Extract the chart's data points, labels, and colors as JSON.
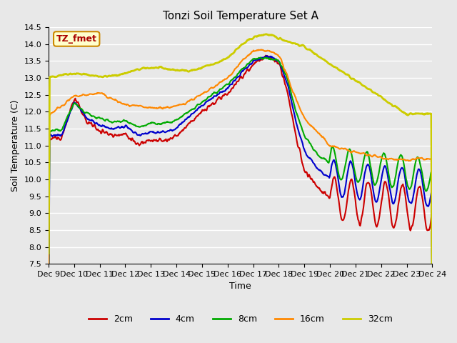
{
  "title": "Tonzi Soil Temperature Set A",
  "xlabel": "Time",
  "ylabel": "Soil Temperature (C)",
  "ylim": [
    7.5,
    14.5
  ],
  "annotation_text": "TZ_fmet",
  "annotation_bg": "#ffffcc",
  "annotation_border": "#cc8800",
  "annotation_text_color": "#aa0000",
  "background_color": "#e8e8e8",
  "plot_bg": "#e8e8e8",
  "grid_color": "#ffffff",
  "series": {
    "2cm": {
      "color": "#cc0000",
      "lw": 1.5
    },
    "4cm": {
      "color": "#0000cc",
      "lw": 1.5
    },
    "8cm": {
      "color": "#00aa00",
      "lw": 1.5
    },
    "16cm": {
      "color": "#ff8800",
      "lw": 1.5
    },
    "32cm": {
      "color": "#cccc00",
      "lw": 2.0
    }
  },
  "xtick_labels": [
    "Dec 9",
    "Dec 10",
    "Dec 11",
    "Dec 12",
    "Dec 13",
    "Dec 14",
    "Dec 15",
    "Dec 16",
    "Dec 17",
    "Dec 18",
    "Dec 19",
    "Dec 20",
    "Dec 21",
    "Dec 22",
    "Dec 23",
    "Dec 24"
  ],
  "legend_labels": [
    "2cm",
    "4cm",
    "8cm",
    "16cm",
    "32cm"
  ],
  "legend_colors": [
    "#cc0000",
    "#0000cc",
    "#00aa00",
    "#ff8800",
    "#cccc00"
  ]
}
